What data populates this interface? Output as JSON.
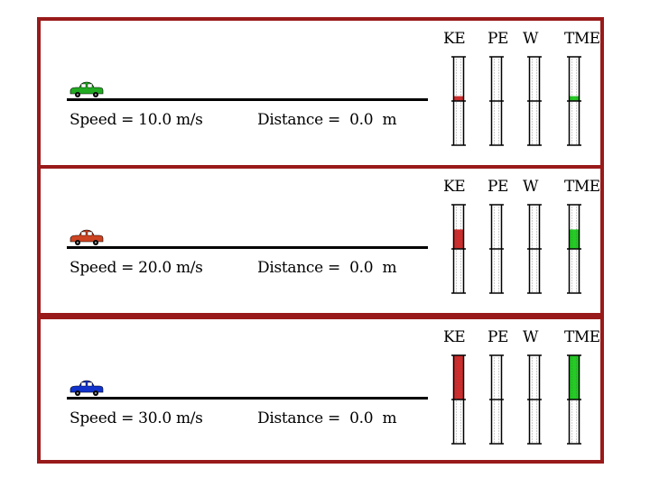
{
  "bar_labels": [
    "KE",
    "PE",
    "W",
    "TME"
  ],
  "colors": {
    "frame": "#991a1a",
    "ke_fill": "#d42a2a",
    "tme_fill": "#22cc22"
  },
  "scenarios": [
    {
      "car_icon": "car-icon",
      "car_color": "#22aa22",
      "speed_text": "Speed = 10.0 m/s",
      "distance_text": "Distance =  0.0  m",
      "levels": {
        "KE": 0.11,
        "PE": 0,
        "W": 0,
        "TME": 0.11
      }
    },
    {
      "car_icon": "car-icon",
      "car_color": "#cc4422",
      "speed_text": "Speed = 20.0 m/s",
      "distance_text": "Distance =  0.0  m",
      "levels": {
        "KE": 0.44,
        "PE": 0,
        "W": 0,
        "TME": 0.44
      }
    },
    {
      "car_icon": "car-icon",
      "car_color": "#1133cc",
      "speed_text": "Speed = 30.0 m/s",
      "distance_text": "Distance =  0.0  m",
      "levels": {
        "KE": 1.0,
        "PE": 0,
        "W": 0,
        "TME": 1.0
      }
    }
  ]
}
